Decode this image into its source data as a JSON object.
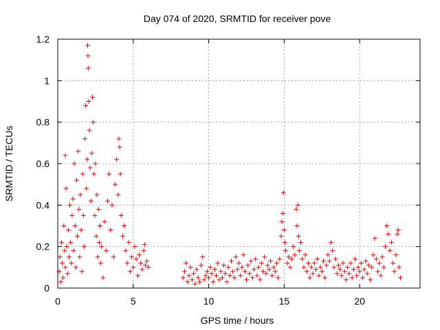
{
  "chart_data": {
    "type": "scatter",
    "title": "Day 074 of 2020, SRMTID for receiver pove",
    "xlabel": "GPS time / hours",
    "ylabel": "SRMTID / TECUs",
    "xlim": [
      0,
      24
    ],
    "ylim": [
      0,
      1.2
    ],
    "xticks": [
      0,
      5,
      10,
      15,
      20
    ],
    "yticks": [
      0,
      0.2,
      0.4,
      0.6,
      0.8,
      1,
      1.2
    ],
    "xtick_labels": [
      "0",
      "5",
      "10",
      "15",
      "20"
    ],
    "ytick_labels": [
      "0",
      "0.2",
      "0.4",
      "0.6",
      "0.8",
      "1",
      "1.2"
    ],
    "grid": true,
    "marker": "+",
    "color": "#e00000",
    "series": [
      {
        "name": "SRMTID",
        "points": [
          [
            0.1,
            0.08
          ],
          [
            0.15,
            0.15
          ],
          [
            0.2,
            0.03
          ],
          [
            0.25,
            0.22
          ],
          [
            0.3,
            0.12
          ],
          [
            0.35,
            0.05
          ],
          [
            0.4,
            0.3
          ],
          [
            0.45,
            0.18
          ],
          [
            0.5,
            0.64
          ],
          [
            0.5,
            0.1
          ],
          [
            0.55,
            0.48
          ],
          [
            0.6,
            0.2
          ],
          [
            0.65,
            0.07
          ],
          [
            0.7,
            0.28
          ],
          [
            0.75,
            0.15
          ],
          [
            0.8,
            0.4
          ],
          [
            0.85,
            0.22
          ],
          [
            0.9,
            0.12
          ],
          [
            0.95,
            0.35
          ],
          [
            1.0,
            0.43
          ],
          [
            1.05,
            0.18
          ],
          [
            1.1,
            0.6
          ],
          [
            1.15,
            0.3
          ],
          [
            1.2,
            0.1
          ],
          [
            1.25,
            0.52
          ],
          [
            1.3,
            0.25
          ],
          [
            1.35,
            0.66
          ],
          [
            1.4,
            0.38
          ],
          [
            1.45,
            0.15
          ],
          [
            1.5,
            0.45
          ],
          [
            1.55,
            0.28
          ],
          [
            1.6,
            0.08
          ],
          [
            1.65,
            0.55
          ],
          [
            1.7,
            0.35
          ],
          [
            1.75,
            0.2
          ],
          [
            1.8,
            0.72
          ],
          [
            1.85,
            0.88
          ],
          [
            1.9,
            0.48
          ],
          [
            1.95,
            0.62
          ],
          [
            1.98,
            1.17
          ],
          [
            2.0,
            1.12
          ],
          [
            2.02,
            1.06
          ],
          [
            2.05,
            0.9
          ],
          [
            2.1,
            0.76
          ],
          [
            2.15,
            0.58
          ],
          [
            2.2,
            0.42
          ],
          [
            2.25,
            0.65
          ],
          [
            2.3,
            0.92
          ],
          [
            2.35,
            0.8
          ],
          [
            2.4,
            0.55
          ],
          [
            2.45,
            0.35
          ],
          [
            2.5,
            0.6
          ],
          [
            2.55,
            0.25
          ],
          [
            2.6,
            0.45
          ],
          [
            2.65,
            0.15
          ],
          [
            2.7,
            0.38
          ],
          [
            2.75,
            0.22
          ],
          [
            2.8,
            0.3
          ],
          [
            2.85,
            0.12
          ],
          [
            2.9,
            0.2
          ],
          [
            3.0,
            0.05
          ],
          [
            3.1,
            0.32
          ],
          [
            3.2,
            0.18
          ],
          [
            3.3,
            0.42
          ],
          [
            3.4,
            0.55
          ],
          [
            3.5,
            0.28
          ],
          [
            3.6,
            0.4
          ],
          [
            3.7,
            0.15
          ],
          [
            3.8,
            0.5
          ],
          [
            3.9,
            0.62
          ],
          [
            4.0,
            0.45
          ],
          [
            4.05,
            0.72
          ],
          [
            4.1,
            0.68
          ],
          [
            4.15,
            0.55
          ],
          [
            4.2,
            0.35
          ],
          [
            4.3,
            0.25
          ],
          [
            4.4,
            0.3
          ],
          [
            4.5,
            0.18
          ],
          [
            4.6,
            0.12
          ],
          [
            4.7,
            0.22
          ],
          [
            4.8,
            0.08
          ],
          [
            4.9,
            0.15
          ],
          [
            5.0,
            0.1
          ],
          [
            5.1,
            0.2
          ],
          [
            5.2,
            0.14
          ],
          [
            5.3,
            0.06
          ],
          [
            5.4,
            0.16
          ],
          [
            5.5,
            0.12
          ],
          [
            5.6,
            0.09
          ],
          [
            5.7,
            0.18
          ],
          [
            5.75,
            0.21
          ],
          [
            5.8,
            0.11
          ],
          [
            5.9,
            0.13
          ],
          [
            6.0,
            0.1
          ],
          [
            8.3,
            0.05
          ],
          [
            8.4,
            0.08
          ],
          [
            8.5,
            0.12
          ],
          [
            8.6,
            0.03
          ],
          [
            8.7,
            0.06
          ],
          [
            8.8,
            0.1
          ],
          [
            8.9,
            0.04
          ],
          [
            9.0,
            0.07
          ],
          [
            9.1,
            0.02
          ],
          [
            9.2,
            0.09
          ],
          [
            9.3,
            0.05
          ],
          [
            9.4,
            0.03
          ],
          [
            9.5,
            0.11
          ],
          [
            9.6,
            0.15
          ],
          [
            9.7,
            0.04
          ],
          [
            9.8,
            0.06
          ],
          [
            9.9,
            0.08
          ],
          [
            10.0,
            0.05
          ],
          [
            10.1,
            0.1
          ],
          [
            10.2,
            0.07
          ],
          [
            10.3,
            0.03
          ],
          [
            10.4,
            0.09
          ],
          [
            10.5,
            0.06
          ],
          [
            10.6,
            0.12
          ],
          [
            10.7,
            0.04
          ],
          [
            10.8,
            0.08
          ],
          [
            10.9,
            0.05
          ],
          [
            11.0,
            0.11
          ],
          [
            11.1,
            0.07
          ],
          [
            11.2,
            0.03
          ],
          [
            11.3,
            0.1
          ],
          [
            11.4,
            0.06
          ],
          [
            11.5,
            0.13
          ],
          [
            11.6,
            0.08
          ],
          [
            11.7,
            0.05
          ],
          [
            11.8,
            0.15
          ],
          [
            11.9,
            0.09
          ],
          [
            12.0,
            0.12
          ],
          [
            12.1,
            0.06
          ],
          [
            12.2,
            0.1
          ],
          [
            12.3,
            0.16
          ],
          [
            12.4,
            0.08
          ],
          [
            12.5,
            0.04
          ],
          [
            12.6,
            0.11
          ],
          [
            12.7,
            0.07
          ],
          [
            12.8,
            0.13
          ],
          [
            12.9,
            0.05
          ],
          [
            13.0,
            0.09
          ],
          [
            13.1,
            0.14
          ],
          [
            13.2,
            0.06
          ],
          [
            13.3,
            0.1
          ],
          [
            13.4,
            0.04
          ],
          [
            13.5,
            0.12
          ],
          [
            13.6,
            0.08
          ],
          [
            13.7,
            0.15
          ],
          [
            13.8,
            0.07
          ],
          [
            13.9,
            0.11
          ],
          [
            14.0,
            0.09
          ],
          [
            14.1,
            0.13
          ],
          [
            14.2,
            0.06
          ],
          [
            14.3,
            0.1
          ],
          [
            14.4,
            0.08
          ],
          [
            14.5,
            0.12
          ],
          [
            14.6,
            0.05
          ],
          [
            14.7,
            0.14
          ],
          [
            14.8,
            0.25
          ],
          [
            14.85,
            0.32
          ],
          [
            14.9,
            0.36
          ],
          [
            14.95,
            0.46
          ],
          [
            15.0,
            0.28
          ],
          [
            15.05,
            0.22
          ],
          [
            15.1,
            0.18
          ],
          [
            15.2,
            0.12
          ],
          [
            15.3,
            0.15
          ],
          [
            15.4,
            0.1
          ],
          [
            15.5,
            0.14
          ],
          [
            15.6,
            0.2
          ],
          [
            15.7,
            0.16
          ],
          [
            15.8,
            0.38
          ],
          [
            15.85,
            0.3
          ],
          [
            15.9,
            0.4
          ],
          [
            15.95,
            0.25
          ],
          [
            16.0,
            0.18
          ],
          [
            16.1,
            0.22
          ],
          [
            16.2,
            0.14
          ],
          [
            16.3,
            0.1
          ],
          [
            16.4,
            0.16
          ],
          [
            16.5,
            0.08
          ],
          [
            16.6,
            0.12
          ],
          [
            16.7,
            0.05
          ],
          [
            16.8,
            0.1
          ],
          [
            16.9,
            0.07
          ],
          [
            17.0,
            0.12
          ],
          [
            17.1,
            0.09
          ],
          [
            17.2,
            0.14
          ],
          [
            17.3,
            0.06
          ],
          [
            17.4,
            0.1
          ],
          [
            17.5,
            0.08
          ],
          [
            17.6,
            0.13
          ],
          [
            17.7,
            0.05
          ],
          [
            17.8,
            0.11
          ],
          [
            17.9,
            0.16
          ],
          [
            18.0,
            0.13
          ],
          [
            18.1,
            0.22
          ],
          [
            18.2,
            0.18
          ],
          [
            18.3,
            0.1
          ],
          [
            18.4,
            0.14
          ],
          [
            18.5,
            0.07
          ],
          [
            18.6,
            0.11
          ],
          [
            18.7,
            0.09
          ],
          [
            18.8,
            0.06
          ],
          [
            18.9,
            0.12
          ],
          [
            19.0,
            0.08
          ],
          [
            19.1,
            0.04
          ],
          [
            19.2,
            0.1
          ],
          [
            19.3,
            0.07
          ],
          [
            19.4,
            0.12
          ],
          [
            19.5,
            0.05
          ],
          [
            19.6,
            0.09
          ],
          [
            19.7,
            0.14
          ],
          [
            19.8,
            0.06
          ],
          [
            19.9,
            0.1
          ],
          [
            20.0,
            0.08
          ],
          [
            20.1,
            0.12
          ],
          [
            20.2,
            0.05
          ],
          [
            20.3,
            0.09
          ],
          [
            20.4,
            0.13
          ],
          [
            20.5,
            0.07
          ],
          [
            20.6,
            0.11
          ],
          [
            20.7,
            0.04
          ],
          [
            20.8,
            0.1
          ],
          [
            20.9,
            0.16
          ],
          [
            21.0,
            0.24
          ],
          [
            21.1,
            0.14
          ],
          [
            21.2,
            0.08
          ],
          [
            21.3,
            0.12
          ],
          [
            21.4,
            0.06
          ],
          [
            21.5,
            0.15
          ],
          [
            21.6,
            0.1
          ],
          [
            21.7,
            0.2
          ],
          [
            21.8,
            0.3
          ],
          [
            21.9,
            0.26
          ],
          [
            22.0,
            0.18
          ],
          [
            22.1,
            0.22
          ],
          [
            22.2,
            0.12
          ],
          [
            22.3,
            0.08
          ],
          [
            22.4,
            0.16
          ],
          [
            22.5,
            0.26
          ],
          [
            22.55,
            0.28
          ],
          [
            22.6,
            0.1
          ],
          [
            22.7,
            0.05
          ]
        ],
        "gaps": [
          [
            6.0,
            8.3
          ]
        ]
      }
    ]
  }
}
